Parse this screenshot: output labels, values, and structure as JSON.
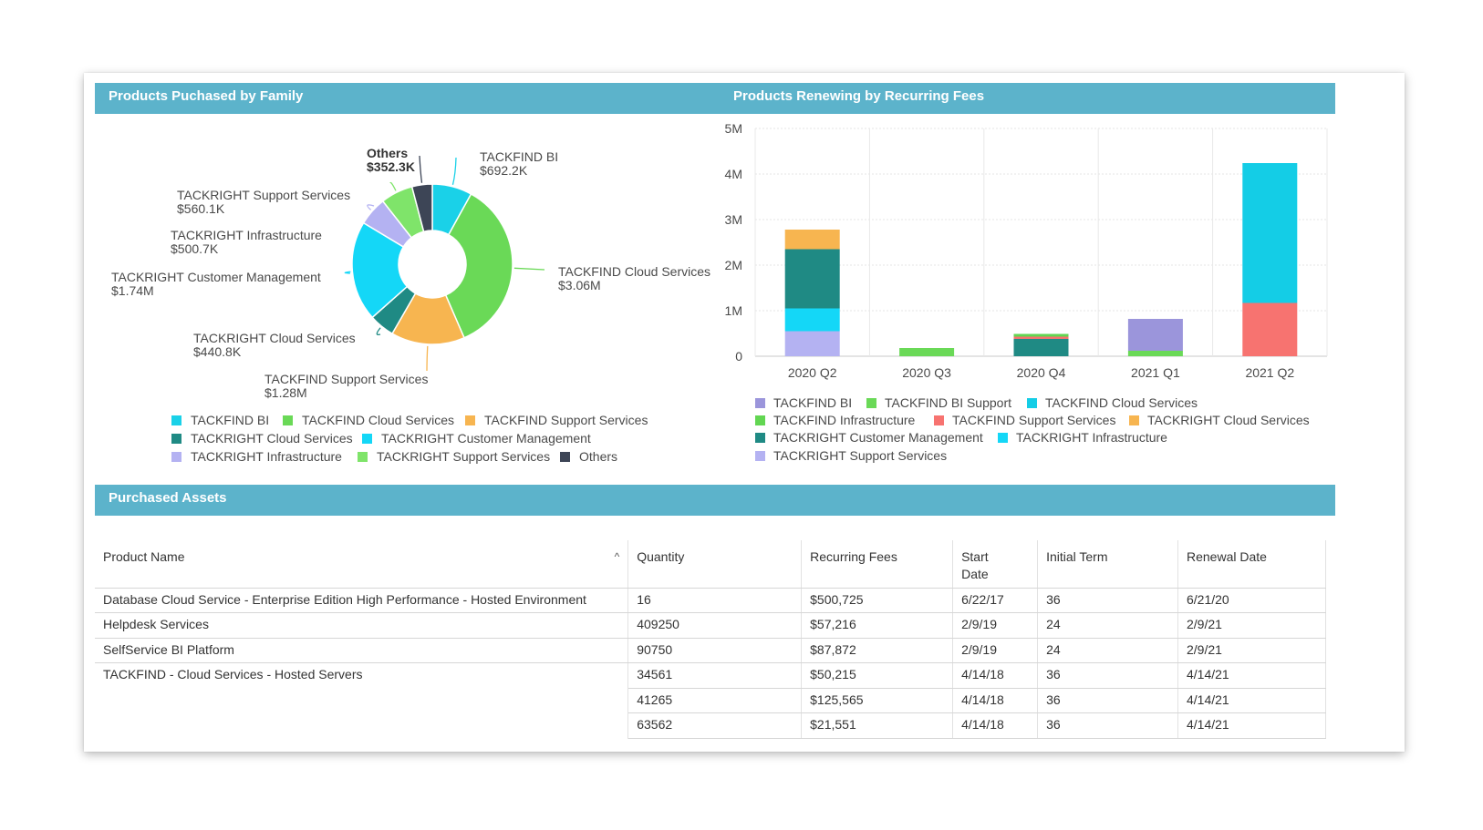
{
  "left_panel": {
    "title": "Products Puchased by Family",
    "donut": [
      {
        "name": "TACKFIND BI",
        "label": "TACKFIND BI",
        "value_label": "$692.2K",
        "value": 692.2,
        "color": "#1ad1e8"
      },
      {
        "name": "TACKFIND Cloud Services",
        "label": "TACKFIND Cloud Services",
        "value_label": "$3.06M",
        "value": 3060,
        "color": "#6ad957"
      },
      {
        "name": "TACKFIND Support Services",
        "label": "TACKFIND Support Services",
        "value_label": "$1.28M",
        "value": 1280,
        "color": "#f7b550"
      },
      {
        "name": "TACKRIGHT Cloud Services",
        "label": "TACKRIGHT Cloud Services",
        "value_label": "$440.8K",
        "value": 440.8,
        "color": "#1f8a84"
      },
      {
        "name": "TACKRIGHT Customer Management",
        "label": "TACKRIGHT Customer Management",
        "value_label": "$1.74M",
        "value": 1740,
        "color": "#14d7f7"
      },
      {
        "name": "TACKRIGHT Infrastructure",
        "label": "TACKRIGHT Infrastructure",
        "value_label": "$500.7K",
        "value": 500.7,
        "color": "#b4b2f2"
      },
      {
        "name": "TACKRIGHT Support Services",
        "label": "TACKRIGHT Support Services",
        "value_label": "$560.1K",
        "value": 560.1,
        "color": "#7fe46a"
      },
      {
        "name": "Others",
        "label": "Others",
        "value_label": "$352.3K",
        "value": 352.3,
        "color": "#3d4556"
      }
    ],
    "legend": [
      {
        "label": "TACKFIND BI",
        "color": "#1ad1e8"
      },
      {
        "label": "TACKFIND Cloud Services",
        "color": "#6ad957"
      },
      {
        "label": "TACKFIND Support Services",
        "color": "#f7b550"
      },
      {
        "label": "TACKRIGHT Cloud Services",
        "color": "#1f8a84"
      },
      {
        "label": "TACKRIGHT Customer Management",
        "color": "#14d7f7"
      },
      {
        "label": "TACKRIGHT Infrastructure",
        "color": "#b4b2f2"
      },
      {
        "label": "TACKRIGHT Support Services",
        "color": "#7fe46a"
      },
      {
        "label": "Others",
        "color": "#3d4556"
      }
    ]
  },
  "right_panel": {
    "title": "Products Renewing by Recurring Fees",
    "legend": [
      {
        "label": "TACKFIND BI",
        "color": "#9b95db"
      },
      {
        "label": "TACKFIND BI Support",
        "color": "#6ad957"
      },
      {
        "label": "TACKFIND Cloud Services",
        "color": "#14cde6"
      },
      {
        "label": "TACKFIND Infrastructure",
        "color": "#62d652"
      },
      {
        "label": "TACKFIND Support Services",
        "color": "#f77370"
      },
      {
        "label": "TACKRIGHT Cloud Services",
        "color": "#f7b550"
      },
      {
        "label": "TACKRIGHT Customer Management",
        "color": "#1f8a84"
      },
      {
        "label": "TACKRIGHT Infrastructure",
        "color": "#14d7f7"
      },
      {
        "label": "TACKRIGHT Support Services",
        "color": "#b4b2f2"
      }
    ]
  },
  "chart_data": [
    {
      "type": "pie",
      "title": "Products Puchased by Family",
      "categories": [
        "TACKFIND BI",
        "TACKFIND Cloud Services",
        "TACKFIND Support Services",
        "TACKRIGHT Cloud Services",
        "TACKRIGHT Customer Management",
        "TACKRIGHT Infrastructure",
        "TACKRIGHT Support Services",
        "Others"
      ],
      "values": [
        692200,
        3060000,
        1280000,
        440800,
        1740000,
        500700,
        560100,
        352300
      ],
      "legend": "bottom"
    },
    {
      "type": "bar",
      "stacked": true,
      "title": "Products Renewing by Recurring Fees",
      "categories": [
        "2020 Q2",
        "2020 Q3",
        "2020 Q4",
        "2021 Q1",
        "2021 Q2"
      ],
      "ylim": [
        0,
        5000000
      ],
      "yticks": [
        "0",
        "1M",
        "2M",
        "3M",
        "4M",
        "5M"
      ],
      "legend": "bottom",
      "series": [
        {
          "name": "TACKRIGHT Support Services",
          "color": "#b4b2f2",
          "values": [
            550000,
            0,
            0,
            0,
            0
          ]
        },
        {
          "name": "TACKRIGHT Infrastructure",
          "color": "#14d7f7",
          "values": [
            500000,
            0,
            0,
            0,
            0
          ]
        },
        {
          "name": "TACKRIGHT Customer Management",
          "color": "#1f8a84",
          "values": [
            1300000,
            0,
            380000,
            0,
            0
          ]
        },
        {
          "name": "TACKRIGHT Cloud Services",
          "color": "#f7b550",
          "values": [
            430000,
            0,
            0,
            0,
            0
          ]
        },
        {
          "name": "TACKFIND Support Services",
          "color": "#f77370",
          "values": [
            0,
            0,
            50000,
            0,
            1170000
          ]
        },
        {
          "name": "TACKFIND Infrastructure",
          "color": "#62d652",
          "values": [
            0,
            0,
            60000,
            0,
            0
          ]
        },
        {
          "name": "TACKFIND BI Support",
          "color": "#6ad957",
          "values": [
            0,
            180000,
            0,
            120000,
            0
          ]
        },
        {
          "name": "TACKFIND BI",
          "color": "#9b95db",
          "values": [
            0,
            0,
            0,
            700000,
            0
          ]
        },
        {
          "name": "TACKFIND Cloud Services",
          "color": "#14cde6",
          "values": [
            0,
            0,
            0,
            0,
            3070000
          ]
        }
      ]
    }
  ],
  "assets": {
    "title": "Purchased Assets",
    "columns": {
      "product": "Product Name",
      "quantity": "Quantity",
      "fees": "Recurring Fees",
      "start_line1": "Start",
      "start_line2": "Date",
      "term": "Initial Term",
      "renewal": "Renewal Date"
    },
    "sort_icon": "chevron-up-icon",
    "sort_glyph": "^",
    "rows": [
      {
        "product": "Database Cloud Service - Enterprise Edition High Performance - Hosted Environment",
        "quantity": "16",
        "fees": "$500,725",
        "start": "6/22/17",
        "term": "36",
        "renewal": "6/21/20"
      },
      {
        "product": "Helpdesk Services",
        "quantity": "409250",
        "fees": "$57,216",
        "start": "2/9/19",
        "term": "24",
        "renewal": "2/9/21"
      },
      {
        "product": "SelfService BI Platform",
        "quantity": "90750",
        "fees": "$87,872",
        "start": "2/9/19",
        "term": "24",
        "renewal": "2/9/21"
      },
      {
        "product": "TACKFIND - Cloud Services - Hosted Servers",
        "quantity": "34561",
        "fees": "$50,215",
        "start": "4/14/18",
        "term": "36",
        "renewal": "4/14/21"
      },
      {
        "product": "",
        "quantity": "41265",
        "fees": "$125,565",
        "start": "4/14/18",
        "term": "36",
        "renewal": "4/14/21"
      },
      {
        "product": "",
        "quantity": "63562",
        "fees": "$21,551",
        "start": "4/14/18",
        "term": "36",
        "renewal": "4/14/21"
      }
    ]
  }
}
